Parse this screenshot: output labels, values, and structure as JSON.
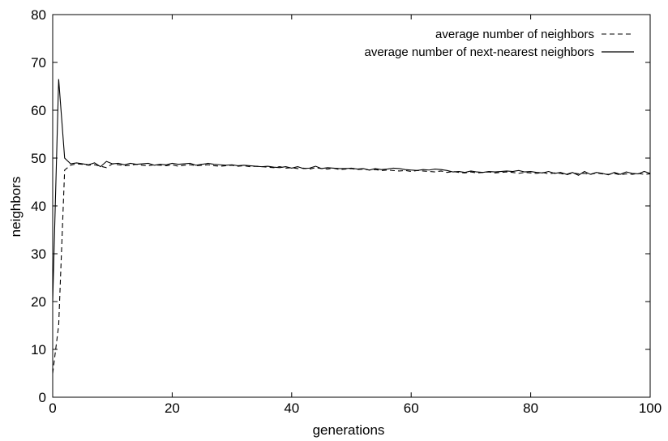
{
  "chart_data": {
    "type": "line",
    "title": "",
    "xlabel": "generations",
    "ylabel": "neighbors",
    "xlim": [
      0,
      100
    ],
    "ylim": [
      0,
      80
    ],
    "xticks": [
      0,
      20,
      40,
      60,
      80,
      100
    ],
    "yticks": [
      0,
      10,
      20,
      30,
      40,
      50,
      60,
      70,
      80
    ],
    "grid": false,
    "legend_position": "top-right",
    "series": [
      {
        "name": "average number of neighbors",
        "style": "dashed",
        "color": "#000000",
        "x": [
          0,
          1,
          2,
          3,
          4,
          5,
          6,
          7,
          8,
          9,
          10,
          11,
          12,
          13,
          14,
          15,
          16,
          17,
          18,
          19,
          20,
          21,
          22,
          23,
          24,
          25,
          26,
          27,
          28,
          29,
          30,
          31,
          32,
          33,
          34,
          35,
          36,
          37,
          38,
          39,
          40,
          41,
          42,
          43,
          44,
          45,
          46,
          47,
          48,
          49,
          50,
          51,
          52,
          53,
          54,
          55,
          56,
          57,
          58,
          59,
          60,
          61,
          62,
          63,
          64,
          65,
          66,
          67,
          68,
          69,
          70,
          71,
          72,
          73,
          74,
          75,
          76,
          77,
          78,
          79,
          80,
          81,
          82,
          83,
          84,
          85,
          86,
          87,
          88,
          89,
          90,
          91,
          92,
          93,
          94,
          95,
          96,
          97,
          98,
          99,
          100
        ],
        "values": [
          5,
          15,
          47.5,
          48.5,
          48.8,
          48.7,
          48.5,
          48.6,
          48.3,
          48,
          48.8,
          48.6,
          48.4,
          48.5,
          48.7,
          48.5,
          48.4,
          48.6,
          48.5,
          48.4,
          48.6,
          48.3,
          48.5,
          48.6,
          48.4,
          48.5,
          48.6,
          48.4,
          48.3,
          48.4,
          48.5,
          48.3,
          48.4,
          48.2,
          48.3,
          48.2,
          48.1,
          48,
          48.2,
          47.9,
          48,
          47.8,
          47.9,
          47.7,
          48,
          47.8,
          47.7,
          47.9,
          47.6,
          47.7,
          47.8,
          47.6,
          47.7,
          47.5,
          47.6,
          47.4,
          47.5,
          47.4,
          47.3,
          47.4,
          47.2,
          47.4,
          47.3,
          47.2,
          47.1,
          47.3,
          47,
          47.2,
          47,
          46.9,
          47.1,
          46.9,
          47,
          47.1,
          46.9,
          47,
          47.1,
          47,
          46.8,
          47,
          46.9,
          46.8,
          47,
          46.7,
          46.9,
          46.8,
          46.5,
          46.9,
          46.7,
          46.8,
          46.6,
          46.9,
          46.7,
          46.6,
          46.8,
          46.5,
          46.7,
          46.6,
          46.8,
          46.6,
          46.7
        ]
      },
      {
        "name": "average number of next-nearest neighbors",
        "style": "solid",
        "color": "#000000",
        "x": [
          0,
          1,
          2,
          3,
          4,
          5,
          6,
          7,
          8,
          9,
          10,
          11,
          12,
          13,
          14,
          15,
          16,
          17,
          18,
          19,
          20,
          21,
          22,
          23,
          24,
          25,
          26,
          27,
          28,
          29,
          30,
          31,
          32,
          33,
          34,
          35,
          36,
          37,
          38,
          39,
          40,
          41,
          42,
          43,
          44,
          45,
          46,
          47,
          48,
          49,
          50,
          51,
          52,
          53,
          54,
          55,
          56,
          57,
          58,
          59,
          60,
          61,
          62,
          63,
          64,
          65,
          66,
          67,
          68,
          69,
          70,
          71,
          72,
          73,
          74,
          75,
          76,
          77,
          78,
          79,
          80,
          81,
          82,
          83,
          84,
          85,
          86,
          87,
          88,
          89,
          90,
          91,
          92,
          93,
          94,
          95,
          96,
          97,
          98,
          99,
          100
        ],
        "values": [
          20,
          66.5,
          50,
          48.8,
          49,
          48.8,
          48.6,
          49,
          48.2,
          49.3,
          48.8,
          48.9,
          48.6,
          48.9,
          48.7,
          48.8,
          48.9,
          48.5,
          48.7,
          48.6,
          48.9,
          48.7,
          48.8,
          48.9,
          48.5,
          48.7,
          48.9,
          48.7,
          48.6,
          48.5,
          48.6,
          48.4,
          48.5,
          48.4,
          48.3,
          48.2,
          48.3,
          48.1,
          48,
          48.2,
          47.9,
          48.2,
          47.8,
          47.9,
          48.3,
          47.8,
          48,
          47.9,
          47.8,
          47.8,
          47.9,
          47.7,
          47.8,
          47.5,
          47.8,
          47.6,
          47.7,
          47.9,
          47.8,
          47.6,
          47.5,
          47.4,
          47.6,
          47.5,
          47.7,
          47.6,
          47.4,
          47.1,
          47.2,
          47,
          47.3,
          47.1,
          47,
          47.2,
          47.1,
          47.2,
          47.3,
          47.2,
          47.4,
          47.1,
          47.2,
          47,
          46.9,
          47.2,
          46.8,
          47,
          46.6,
          47,
          46.4,
          47.2,
          46.6,
          47,
          46.8,
          46.5,
          47,
          46.6,
          47.1,
          46.8,
          46.7,
          47.2,
          46.8
        ]
      }
    ]
  }
}
